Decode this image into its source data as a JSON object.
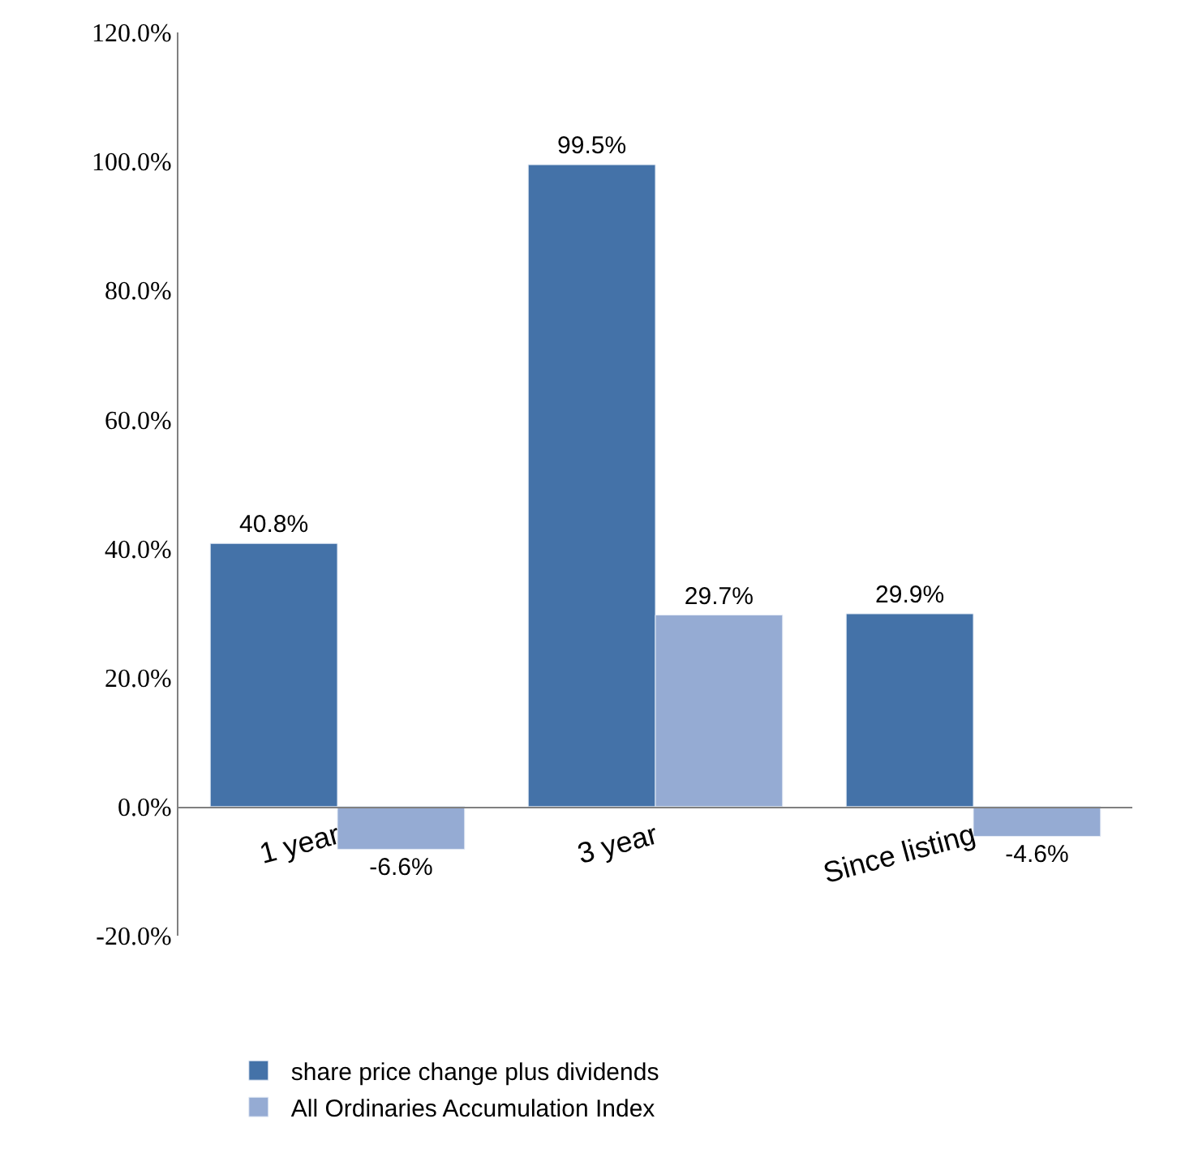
{
  "chart_data": {
    "type": "bar",
    "categories": [
      "1 year",
      "3 year",
      "Since listing"
    ],
    "series": [
      {
        "name": "share price change plus dividends",
        "color": "#4472a8",
        "values": [
          40.8,
          99.5,
          29.9
        ],
        "value_labels": [
          "40.8%",
          "99.5%",
          "29.9%"
        ]
      },
      {
        "name": "All Ordinaries Accumulation Index",
        "color": "#95abd3",
        "values": [
          -6.6,
          29.7,
          -4.6
        ],
        "value_labels": [
          "-6.6%",
          "29.7%",
          "-4.6%"
        ]
      }
    ],
    "ylim": [
      -20,
      120
    ],
    "yticks": [
      {
        "value": -20,
        "label": "-20.0%"
      },
      {
        "value": 0,
        "label": "0.0%"
      },
      {
        "value": 20,
        "label": "20.0%"
      },
      {
        "value": 40,
        "label": "40.0%"
      },
      {
        "value": 60,
        "label": "60.0%"
      },
      {
        "value": 80,
        "label": "80.0%"
      },
      {
        "value": 100,
        "label": "100.0%"
      },
      {
        "value": 120,
        "label": "120.0%"
      }
    ],
    "legend": "bottom"
  }
}
